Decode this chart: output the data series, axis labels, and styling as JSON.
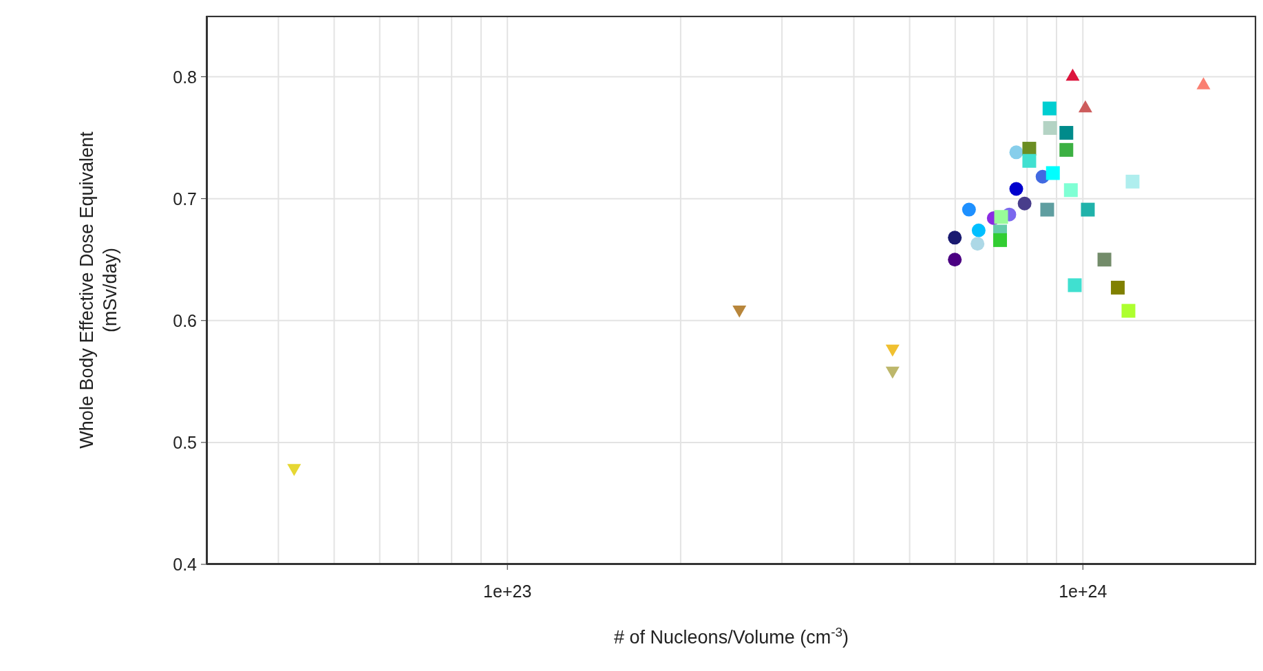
{
  "chart_data": {
    "type": "scatter",
    "xlabel": "# of Nucleons/Volume (cm$^{-3}$)",
    "ylabel": "Whole Body Effective Dose Equivalent\n(mSv/day)",
    "log": "x",
    "grid": true,
    "xlim": [
      3e+22,
      2e+24
    ],
    "ylim": [
      0.4,
      0.85
    ],
    "xticks": [
      {
        "value": 4e+22,
        "label": null
      },
      {
        "value": 5e+22,
        "label": null
      },
      {
        "value": 6e+22,
        "label": null
      },
      {
        "value": 7e+22,
        "label": null
      },
      {
        "value": 8e+22,
        "label": null
      },
      {
        "value": 9e+22,
        "label": null
      },
      {
        "value": 1e+23,
        "label": "1e+23"
      },
      {
        "value": 2e+23,
        "label": null
      },
      {
        "value": 3e+23,
        "label": null
      },
      {
        "value": 4e+23,
        "label": null
      },
      {
        "value": 5e+23,
        "label": null
      },
      {
        "value": 6e+23,
        "label": null
      },
      {
        "value": 7e+23,
        "label": null
      },
      {
        "value": 8e+23,
        "label": null
      },
      {
        "value": 9e+23,
        "label": null
      },
      {
        "value": 1e+24,
        "label": "1e+24"
      }
    ],
    "yticks": [
      0.4,
      0.5,
      0.6,
      0.7,
      0.8
    ],
    "series": [
      {
        "type": "scatter",
        "marker": "circle",
        "x": [
          5.99e+23,
          5.99e+23,
          6.34e+23,
          6.59e+23,
          6.56e+23,
          7e+23,
          7.45e+23,
          7.66e+23,
          7.92e+23,
          7.66e+23,
          8.51e+23
        ],
        "values": [
          0.65,
          0.668,
          0.691,
          0.674,
          0.663,
          0.684,
          0.687,
          0.708,
          0.696,
          0.738,
          0.718
        ],
        "colors": [
          "#4b0082",
          "#191970",
          "#1e90ff",
          "#00bfff",
          "#add8e6",
          "#8a2be2",
          "#7b68ee",
          "#0000cd",
          "#483d8b",
          "#87ceeb",
          "#4169e1"
        ]
      },
      {
        "type": "scatter",
        "marker": "square",
        "x": [
          7.21e+23,
          7.18e+23,
          7.18e+23,
          8.07e+23,
          8.07e+23,
          8.75e+23,
          8.77e+23,
          9.36e+23,
          9.36e+23,
          8.87e+23,
          9.53e+23,
          1.22e+24,
          8.67e+23,
          1.02e+24,
          1.09e+24,
          9.68e+23,
          1.15e+24,
          1.2e+24
        ],
        "values": [
          0.685,
          0.673,
          0.666,
          0.741,
          0.731,
          0.774,
          0.758,
          0.754,
          0.74,
          0.721,
          0.707,
          0.714,
          0.691,
          0.691,
          0.65,
          0.629,
          0.627,
          0.608
        ],
        "colors": [
          "#98fb98",
          "#66cdaa",
          "#32cd32",
          "#6b8e23",
          "#40e0d0",
          "#00ced1",
          "#b4d3c4",
          "#008b8b",
          "#3cb043",
          "#00ffff",
          "#7fffd4",
          "#afeeee",
          "#5f9ea0",
          "#20b2aa",
          "#738c6a",
          "#40e0d0",
          "#808000",
          "#adff2f"
        ]
      },
      {
        "type": "scatter",
        "marker": "triangle",
        "x": [
          9.6e+23,
          1.01e+24,
          1.62e+24
        ],
        "values": [
          0.801,
          0.775,
          0.794
        ],
        "colors": [
          "#dc143c",
          "#cd5c5c",
          "#fa8072"
        ]
      },
      {
        "type": "scatter",
        "marker": "triangle-down",
        "x": [
          4.26e+22,
          2.53e+23,
          4.67e+23,
          4.67e+23
        ],
        "values": [
          0.478,
          0.608,
          0.576,
          0.558
        ],
        "colors": [
          "#e6d733",
          "#b8863b",
          "#f0c030",
          "#bdb76b"
        ]
      }
    ]
  }
}
